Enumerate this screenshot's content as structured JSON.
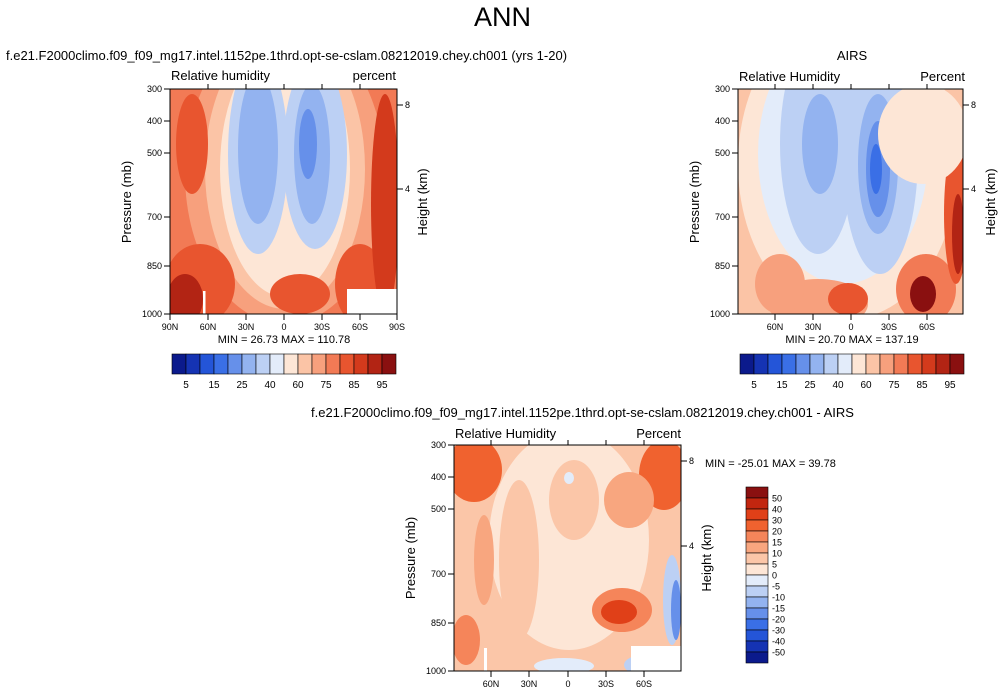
{
  "page_title": "ANN",
  "chart_data": [
    {
      "type": "heatmap",
      "title": "f.e21.F2000climo.f09_f09_mg17.intel.1152pe.1thrd.opt-se-cslam.08212019.chey.ch001 (yrs 1-20)",
      "left_label": "Relative humidity",
      "right_label": "percent",
      "ylabel": "Pressure (mb)",
      "y2label": "Height (km)",
      "y_ticks": [
        "300",
        "400",
        "500",
        "700",
        "850",
        "1000"
      ],
      "y2_ticks": [
        "8",
        "4"
      ],
      "x_ticks": [
        "90N",
        "60N",
        "30N",
        "0",
        "30S",
        "60S",
        "90S"
      ],
      "stats": "MIN =  26.73   MAX = 110.78",
      "colorbar_labels": [
        "5",
        "15",
        "25",
        "40",
        "60",
        "75",
        "85",
        "95"
      ],
      "colorbar_colors": [
        "#0b1a8c",
        "#1533b3",
        "#2455d8",
        "#3a6fe6",
        "#6690ea",
        "#93b3f0",
        "#bcd0f4",
        "#e3ecfa",
        "#fde6d6",
        "#fbc4a6",
        "#f7a07d",
        "#f27a55",
        "#e8552f",
        "#d33a1c",
        "#b22414",
        "#8a1010"
      ]
    },
    {
      "type": "heatmap",
      "title": "AIRS",
      "left_label": "Relative Humidity",
      "right_label": "Percent",
      "ylabel": "Pressure (mb)",
      "y2label": "Height (km)",
      "y_ticks": [
        "300",
        "400",
        "500",
        "700",
        "850",
        "1000"
      ],
      "y2_ticks": [
        "8",
        "4"
      ],
      "x_ticks": [
        "60N",
        "30N",
        "0",
        "30S",
        "60S"
      ],
      "stats": "MIN =  20.70   MAX = 137.19",
      "colorbar_labels": [
        "5",
        "15",
        "25",
        "40",
        "60",
        "75",
        "85",
        "95"
      ],
      "colorbar_colors": [
        "#0b1a8c",
        "#1533b3",
        "#2455d8",
        "#3a6fe6",
        "#6690ea",
        "#93b3f0",
        "#bcd0f4",
        "#e3ecfa",
        "#fde6d6",
        "#fbc4a6",
        "#f7a07d",
        "#f27a55",
        "#e8552f",
        "#d33a1c",
        "#b22414",
        "#8a1010"
      ]
    },
    {
      "type": "heatmap",
      "title": "f.e21.F2000climo.f09_f09_mg17.intel.1152pe.1thrd.opt-se-cslam.08212019.chey.ch001 - AIRS",
      "left_label": "Relative Humidity",
      "right_label": "Percent",
      "ylabel": "Pressure (mb)",
      "y2label": "Height (km)",
      "y_ticks": [
        "300",
        "400",
        "500",
        "700",
        "850",
        "1000"
      ],
      "y2_ticks": [
        "8",
        "4"
      ],
      "x_ticks": [
        "60N",
        "30N",
        "0",
        "30S",
        "60S"
      ],
      "stats": "MIN = -25.01   MAX =  39.78",
      "colorbar_labels": [
        "50",
        "40",
        "30",
        "20",
        "15",
        "10",
        "5",
        "0",
        "-5",
        "-10",
        "-15",
        "-20",
        "-30",
        "-40",
        "-50"
      ],
      "colorbar_colors": [
        "#8a1010",
        "#c2260f",
        "#e04018",
        "#f0622f",
        "#f5855a",
        "#f8a67f",
        "#fbc6a8",
        "#fde6d6",
        "#e3ecfa",
        "#bcd0f4",
        "#93b3f0",
        "#6690ea",
        "#3a6fe6",
        "#2455d8",
        "#1533b3",
        "#0b1a8c"
      ]
    }
  ]
}
